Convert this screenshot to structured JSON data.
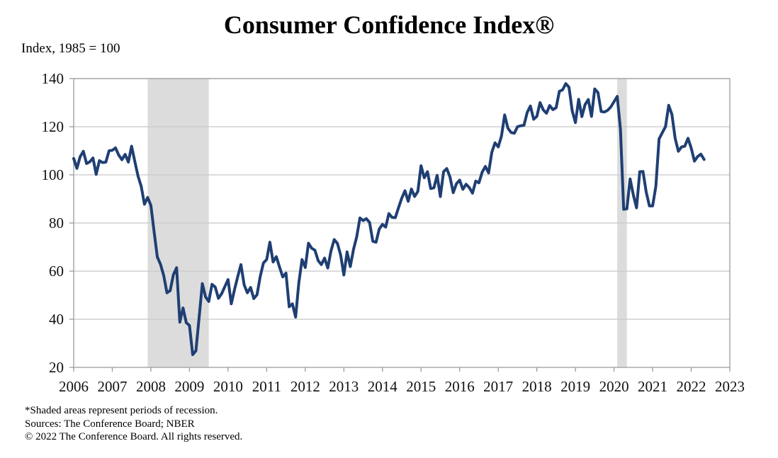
{
  "chart_data": {
    "type": "line",
    "title": "Consumer Confidence Index®",
    "ylabel": "Index, 1985 = 100",
    "xlabel": "",
    "ylim": [
      20,
      140
    ],
    "yticks": [
      20,
      40,
      60,
      80,
      100,
      120,
      140
    ],
    "xlim": [
      2006,
      2023
    ],
    "xticks": [
      "2006",
      "2007",
      "2008",
      "2009",
      "2010",
      "2011",
      "2012",
      "2013",
      "2014",
      "2015",
      "2016",
      "2017",
      "2018",
      "2019",
      "2020",
      "2021",
      "2022",
      "2023"
    ],
    "grid": "horizontal",
    "legend": "none",
    "series": [
      {
        "name": "Consumer Confidence Index",
        "color": "#1f3f73",
        "start": "2006-01",
        "frequency": "monthly",
        "values": [
          106.8,
          102.7,
          107.5,
          109.8,
          104.7,
          105.4,
          107.0,
          100.2,
          105.9,
          105.1,
          105.3,
          110.0,
          110.2,
          111.2,
          108.2,
          106.3,
          108.5,
          105.3,
          111.9,
          105.6,
          99.5,
          95.2,
          87.8,
          90.6,
          87.3,
          76.4,
          65.9,
          62.8,
          58.1,
          51.0,
          51.9,
          58.5,
          61.4,
          38.8,
          44.7,
          38.6,
          37.4,
          25.3,
          26.9,
          40.8,
          54.8,
          49.3,
          47.4,
          54.5,
          53.4,
          48.7,
          50.6,
          53.6,
          56.5,
          46.4,
          52.3,
          57.7,
          62.7,
          54.3,
          51.0,
          53.2,
          48.6,
          50.2,
          57.8,
          63.4,
          64.8,
          72.0,
          63.8,
          66.0,
          61.7,
          57.6,
          59.2,
          45.2,
          46.4,
          40.9,
          55.2,
          64.8,
          61.5,
          71.6,
          69.5,
          68.7,
          64.4,
          62.7,
          65.4,
          61.3,
          68.4,
          73.1,
          71.5,
          66.7,
          58.4,
          68.0,
          61.9,
          69.0,
          74.3,
          82.1,
          81.0,
          81.8,
          80.2,
          72.4,
          72.0,
          77.5,
          79.4,
          78.3,
          83.9,
          82.3,
          82.2,
          86.4,
          90.3,
          93.4,
          89.0,
          94.1,
          91.0,
          93.1,
          103.8,
          98.8,
          101.3,
          94.3,
          94.6,
          99.8,
          91.0,
          101.3,
          102.6,
          99.1,
          92.6,
          96.3,
          97.8,
          94.0,
          96.1,
          94.7,
          92.4,
          97.4,
          96.7,
          101.1,
          103.5,
          100.8,
          109.4,
          113.3,
          111.6,
          116.1,
          124.9,
          119.4,
          117.6,
          117.3,
          120.0,
          120.4,
          120.6,
          125.9,
          128.6,
          123.1,
          124.3,
          130.0,
          127.0,
          125.6,
          128.8,
          127.1,
          127.9,
          134.7,
          135.3,
          137.9,
          136.4,
          126.6,
          121.7,
          131.4,
          124.2,
          129.2,
          131.3,
          124.3,
          135.7,
          134.2,
          126.3,
          126.1,
          126.8,
          128.2,
          130.4,
          132.6,
          118.8,
          85.7,
          85.9,
          98.3,
          91.7,
          86.3,
          101.3,
          101.4,
          92.9,
          87.1,
          87.1,
          95.2,
          114.9,
          117.5,
          120.0,
          128.9,
          125.1,
          115.2,
          109.8,
          111.6,
          111.9,
          115.2,
          111.1,
          105.7,
          107.6,
          108.6,
          106.4
        ]
      }
    ],
    "shaded_regions": [
      {
        "label": "Recession",
        "start": "2007-12",
        "end": "2009-06"
      },
      {
        "label": "Recession",
        "start": "2020-02",
        "end": "2020-04"
      }
    ],
    "colors": {
      "line": "#1f3f73",
      "recession": "#dcdcdc",
      "grid": "#c8c8c8",
      "axis": "#9a9a9a"
    }
  },
  "notes": [
    "*Shaded areas represent periods of recession.",
    "Sources: The Conference Board; NBER",
    "© 2022 The Conference Board. All rights reserved."
  ]
}
